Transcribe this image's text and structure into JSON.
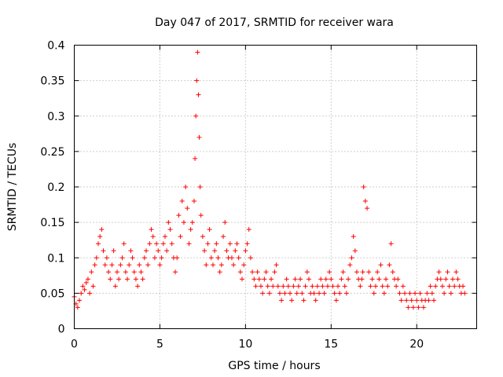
{
  "chart_data": {
    "type": "scatter",
    "title": "Day 047 of 2017, SRMTID for receiver wara",
    "xlabel": "GPS time / hours",
    "ylabel": "SRMTID / TECUs",
    "xlim": [
      0,
      23.5
    ],
    "ylim": [
      0,
      0.4
    ],
    "x_ticks": [
      0,
      5,
      10,
      15,
      20
    ],
    "x_tick_labels": [
      "0",
      "5",
      "10",
      "15",
      "20"
    ],
    "y_ticks": [
      0,
      0.05,
      0.1,
      0.15,
      0.2,
      0.25,
      0.3,
      0.35,
      0.4
    ],
    "y_tick_labels": [
      "0",
      "0.05",
      "0.1",
      "0.15",
      "0.2",
      "0.25",
      "0.3",
      "0.35",
      "0.4"
    ],
    "grid": true,
    "marker": "+",
    "color": "#ff0000",
    "series": [
      {
        "name": "SRMTID",
        "x": [
          0.0,
          0.1,
          0.2,
          0.3,
          0.4,
          0.5,
          0.6,
          0.7,
          0.8,
          0.9,
          1.0,
          1.1,
          1.2,
          1.3,
          1.4,
          1.5,
          1.6,
          1.7,
          1.8,
          1.9,
          2.0,
          2.1,
          2.2,
          2.3,
          2.4,
          2.5,
          2.6,
          2.7,
          2.8,
          2.9,
          3.0,
          3.1,
          3.2,
          3.3,
          3.4,
          3.5,
          3.6,
          3.7,
          3.8,
          3.9,
          4.0,
          4.1,
          4.2,
          4.3,
          4.4,
          4.5,
          4.6,
          4.7,
          4.8,
          4.9,
          5.0,
          5.1,
          5.2,
          5.3,
          5.4,
          5.5,
          5.6,
          5.7,
          5.8,
          5.9,
          6.0,
          6.1,
          6.2,
          6.3,
          6.4,
          6.5,
          6.6,
          6.7,
          6.8,
          6.9,
          7.0,
          7.05,
          7.1,
          7.15,
          7.2,
          7.25,
          7.3,
          7.35,
          7.4,
          7.5,
          7.6,
          7.7,
          7.8,
          7.9,
          8.0,
          8.1,
          8.2,
          8.3,
          8.4,
          8.5,
          8.6,
          8.7,
          8.8,
          8.9,
          9.0,
          9.1,
          9.2,
          9.3,
          9.4,
          9.5,
          9.6,
          9.7,
          9.8,
          9.9,
          10.0,
          10.1,
          10.2,
          10.3,
          10.4,
          10.5,
          10.6,
          10.7,
          10.8,
          10.9,
          11.0,
          11.1,
          11.2,
          11.3,
          11.4,
          11.5,
          11.6,
          11.7,
          11.8,
          11.9,
          12.0,
          12.1,
          12.2,
          12.3,
          12.4,
          12.5,
          12.6,
          12.7,
          12.8,
          12.9,
          13.0,
          13.1,
          13.2,
          13.3,
          13.4,
          13.5,
          13.6,
          13.7,
          13.8,
          13.9,
          14.0,
          14.1,
          14.2,
          14.3,
          14.4,
          14.5,
          14.6,
          14.7,
          14.8,
          14.9,
          15.0,
          15.1,
          15.2,
          15.3,
          15.4,
          15.5,
          15.6,
          15.7,
          15.8,
          15.9,
          16.0,
          16.1,
          16.2,
          16.3,
          16.4,
          16.5,
          16.6,
          16.7,
          16.8,
          16.85,
          16.9,
          17.0,
          17.1,
          17.2,
          17.3,
          17.4,
          17.5,
          17.6,
          17.7,
          17.8,
          17.9,
          18.0,
          18.1,
          18.2,
          18.3,
          18.4,
          18.5,
          18.6,
          18.7,
          18.8,
          18.9,
          19.0,
          19.1,
          19.2,
          19.3,
          19.4,
          19.5,
          19.6,
          19.7,
          19.8,
          19.9,
          20.0,
          20.1,
          20.2,
          20.3,
          20.4,
          20.5,
          20.6,
          20.7,
          20.8,
          20.9,
          21.0,
          21.1,
          21.2,
          21.3,
          21.4,
          21.5,
          21.6,
          21.7,
          21.8,
          21.9,
          22.0,
          22.1,
          22.2,
          22.3,
          22.4,
          22.5,
          22.6,
          22.7,
          22.8
        ],
        "y": [
          0.045,
          0.035,
          0.03,
          0.04,
          0.05,
          0.06,
          0.055,
          0.065,
          0.07,
          0.05,
          0.08,
          0.06,
          0.09,
          0.1,
          0.12,
          0.13,
          0.14,
          0.11,
          0.09,
          0.1,
          0.08,
          0.07,
          0.09,
          0.11,
          0.06,
          0.08,
          0.07,
          0.09,
          0.1,
          0.12,
          0.08,
          0.07,
          0.09,
          0.11,
          0.1,
          0.08,
          0.07,
          0.06,
          0.09,
          0.08,
          0.07,
          0.1,
          0.11,
          0.09,
          0.12,
          0.14,
          0.13,
          0.1,
          0.12,
          0.11,
          0.09,
          0.1,
          0.12,
          0.13,
          0.11,
          0.15,
          0.14,
          0.12,
          0.1,
          0.08,
          0.1,
          0.16,
          0.13,
          0.18,
          0.15,
          0.2,
          0.17,
          0.12,
          0.14,
          0.15,
          0.18,
          0.24,
          0.3,
          0.35,
          0.39,
          0.33,
          0.27,
          0.2,
          0.16,
          0.13,
          0.11,
          0.09,
          0.12,
          0.14,
          0.1,
          0.09,
          0.11,
          0.12,
          0.1,
          0.08,
          0.09,
          0.13,
          0.15,
          0.11,
          0.1,
          0.12,
          0.1,
          0.09,
          0.11,
          0.12,
          0.1,
          0.08,
          0.07,
          0.09,
          0.11,
          0.12,
          0.14,
          0.1,
          0.08,
          0.07,
          0.06,
          0.08,
          0.07,
          0.06,
          0.05,
          0.07,
          0.08,
          0.06,
          0.05,
          0.07,
          0.06,
          0.08,
          0.09,
          0.06,
          0.05,
          0.04,
          0.06,
          0.05,
          0.07,
          0.06,
          0.05,
          0.04,
          0.06,
          0.07,
          0.05,
          0.06,
          0.07,
          0.05,
          0.04,
          0.06,
          0.08,
          0.07,
          0.05,
          0.06,
          0.05,
          0.04,
          0.06,
          0.05,
          0.07,
          0.06,
          0.05,
          0.07,
          0.06,
          0.08,
          0.07,
          0.06,
          0.05,
          0.04,
          0.06,
          0.05,
          0.07,
          0.08,
          0.06,
          0.05,
          0.07,
          0.09,
          0.1,
          0.13,
          0.11,
          0.08,
          0.07,
          0.06,
          0.07,
          0.08,
          0.2,
          0.18,
          0.17,
          0.08,
          0.06,
          0.07,
          0.05,
          0.06,
          0.08,
          0.07,
          0.09,
          0.06,
          0.05,
          0.07,
          0.06,
          0.09,
          0.12,
          0.08,
          0.07,
          0.06,
          0.07,
          0.05,
          0.04,
          0.06,
          0.05,
          0.04,
          0.03,
          0.05,
          0.04,
          0.03,
          0.05,
          0.04,
          0.03,
          0.05,
          0.04,
          0.03,
          0.04,
          0.05,
          0.04,
          0.06,
          0.05,
          0.04,
          0.06,
          0.07,
          0.08,
          0.07,
          0.06,
          0.05,
          0.07,
          0.08,
          0.06,
          0.05,
          0.07,
          0.06,
          0.08,
          0.07,
          0.06,
          0.05,
          0.06,
          0.05
        ]
      }
    ]
  }
}
